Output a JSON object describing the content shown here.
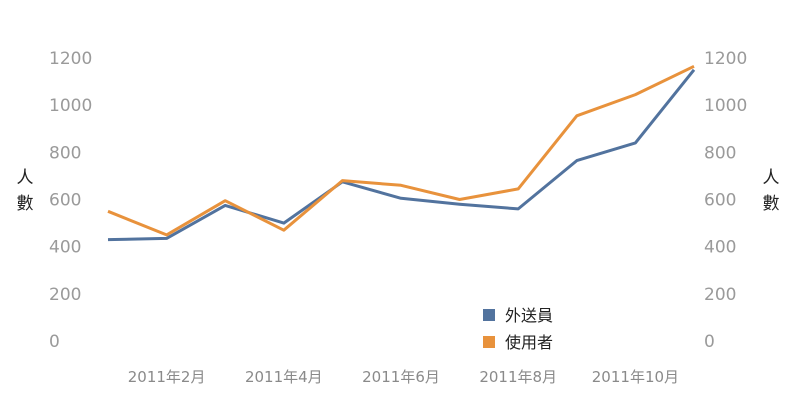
{
  "chart_data": {
    "type": "line",
    "categories": [
      "2011年1月",
      "2011年2月",
      "2011年3月",
      "2011年4月",
      "2011年5月",
      "2011年6月",
      "2011年7月",
      "2011年8月",
      "2011年9月",
      "2011年10月",
      "2011年11月"
    ],
    "x_tick_labels": [
      "2011年2月",
      "2011年4月",
      "2011年6月",
      "2011年8月",
      "2011年10月"
    ],
    "x_tick_indices": [
      1,
      3,
      5,
      7,
      9
    ],
    "ylim": [
      0,
      1200
    ],
    "yticks": [
      "0",
      "200",
      "400",
      "600",
      "800",
      "1000",
      "1200"
    ],
    "ylabel_left": "人數",
    "ylabel_right": "人數",
    "legend_position": "bottom-right",
    "series": [
      {
        "name": "外送員",
        "color": "#52739e",
        "values": [
          430,
          435,
          575,
          500,
          675,
          605,
          580,
          560,
          765,
          840,
          1150
        ]
      },
      {
        "name": "使用者",
        "color": "#e8923c",
        "values": [
          550,
          450,
          595,
          470,
          680,
          660,
          600,
          645,
          955,
          1045,
          1165
        ]
      }
    ]
  }
}
